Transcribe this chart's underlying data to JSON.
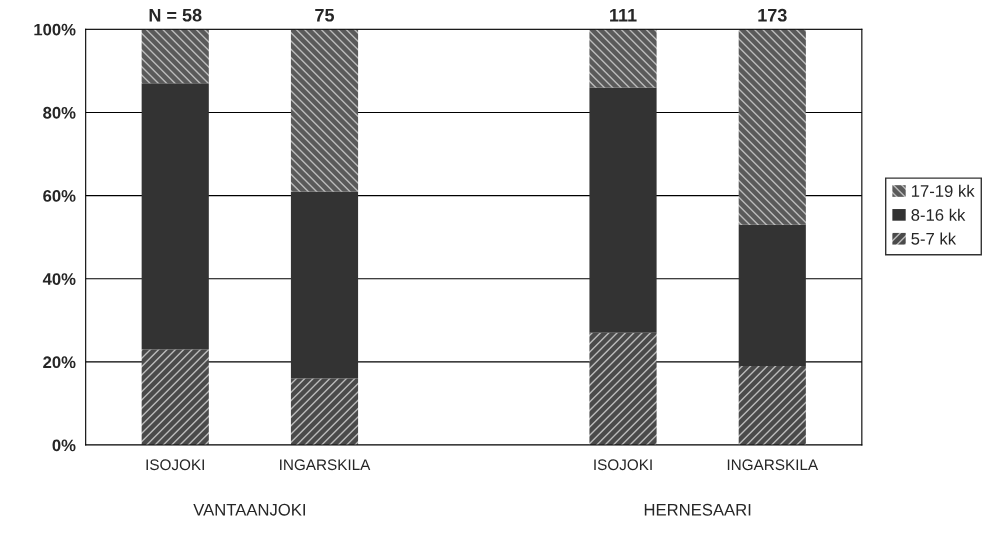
{
  "chart_data": {
    "type": "bar",
    "stacked": true,
    "categories": [
      "ISOJOKI",
      "INGARSKILA",
      null,
      "ISOJOKI",
      "INGARSKILA"
    ],
    "series": [
      {
        "name": "5-7 kk",
        "color": "#4a4a4a",
        "values": [
          23,
          16,
          null,
          27,
          19
        ]
      },
      {
        "name": "8-16 kk",
        "color": "#333333",
        "values": [
          64,
          45,
          null,
          59,
          34
        ]
      },
      {
        "name": "17-19 kk",
        "color": "#5a5a5a",
        "values": [
          13,
          39,
          null,
          14,
          47
        ]
      }
    ],
    "ylim": [
      0,
      100
    ],
    "yticks": [
      {
        "value": 0,
        "label": "0%"
      },
      {
        "value": 20,
        "label": "20%"
      },
      {
        "value": 40,
        "label": "40%"
      },
      {
        "value": 60,
        "label": "60%"
      },
      {
        "value": 80,
        "label": "80%"
      },
      {
        "value": 100,
        "label": "100%"
      }
    ],
    "grid": "y",
    "legend": "right",
    "annotations": [
      "N = 58",
      "75",
      "111",
      "173",
      "VANTAANJOKI",
      "HERNESAARI"
    ]
  }
}
